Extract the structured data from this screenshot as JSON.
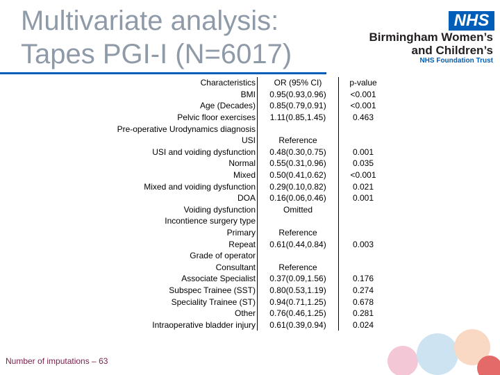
{
  "header": {
    "title_lines": [
      "Multivariate analysis:",
      "Tapes PGI-I (N=6017)"
    ],
    "logo": {
      "badge": "NHS",
      "lines": [
        "Birmingham Women’s",
        "and Children’s"
      ],
      "trust": "NHS Foundation Trust"
    }
  },
  "table": {
    "header": [
      "Characteristics",
      "OR (95% CI)",
      "p-value"
    ],
    "rows": [
      [
        "BMI",
        "0.95(0.93,0.96)",
        "<0.001"
      ],
      [
        "Age (Decades)",
        "0.85(0.79,0.91)",
        "<0.001"
      ],
      [
        "Pelvic floor exercises",
        "1.11(0.85,1.45)",
        "0.463"
      ],
      [
        "Pre-operative Urodynamics diagnosis"
      ],
      [
        "USI",
        "Reference"
      ],
      [
        "USI and voiding dysfunction",
        "0.48(0.30,0.75)",
        "0.001"
      ],
      [
        "Normal",
        "0.55(0.31,0.96)",
        "0.035"
      ],
      [
        "Mixed",
        "0.50(0.41,0.62)",
        "<0.001"
      ],
      [
        "Mixed and voiding dysfunction",
        "0.29(0.10,0.82)",
        "0.021"
      ],
      [
        "DOA",
        "0.16(0.06,0.46)",
        "0.001"
      ],
      [
        "Voiding dysfunction",
        "Omitted"
      ],
      [
        "Incontience surgery type"
      ],
      [
        "Primary",
        "Reference"
      ],
      [
        "Repeat",
        "0.61(0.44,0.84)",
        "0.003"
      ],
      [
        "Grade of operator"
      ],
      [
        "Consultant",
        "Reference"
      ],
      [
        "Associate Specialist",
        "0.37(0.09,1.56)",
        "0.176"
      ],
      [
        "Subspec Trainee (SST)",
        "0.80(0.53,1.19)",
        "0.274"
      ],
      [
        "Speciality Trainee (ST)",
        "0.94(0.71,1.25)",
        "0.678"
      ],
      [
        "Other",
        "0.76(0.46,1.25)",
        "0.281"
      ],
      [
        "Intraoperative bladder injury",
        "0.61(0.39,0.94)",
        "0.024"
      ]
    ]
  },
  "footer": "Number of imputations – 63"
}
